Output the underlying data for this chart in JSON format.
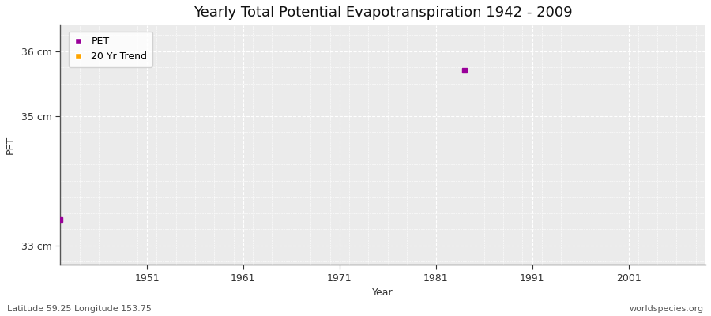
{
  "title": "Yearly Total Potential Evapotranspiration 1942 - 2009",
  "xlabel": "Year",
  "ylabel": "PET",
  "xlim": [
    1942,
    2009
  ],
  "ylim": [
    32.7,
    36.4
  ],
  "yticks": [
    33,
    35,
    36
  ],
  "ytick_labels": [
    "33 cm",
    "35 cm",
    "36 cm"
  ],
  "xticks": [
    1951,
    1961,
    1971,
    1981,
    1991,
    2001
  ],
  "pet_data": [
    [
      1942,
      33.4
    ],
    [
      1984,
      35.7
    ]
  ],
  "pet_color": "#990099",
  "trend_color": "#FFA500",
  "fig_bg_color": "#ffffff",
  "plot_bg_color": "#ebebeb",
  "grid_color": "#ffffff",
  "legend_labels": [
    "PET",
    "20 Yr Trend"
  ],
  "footer_left": "Latitude 59.25 Longitude 153.75",
  "footer_right": "worldspecies.org",
  "title_fontsize": 13,
  "axis_label_fontsize": 9,
  "tick_fontsize": 9,
  "footer_fontsize": 8
}
